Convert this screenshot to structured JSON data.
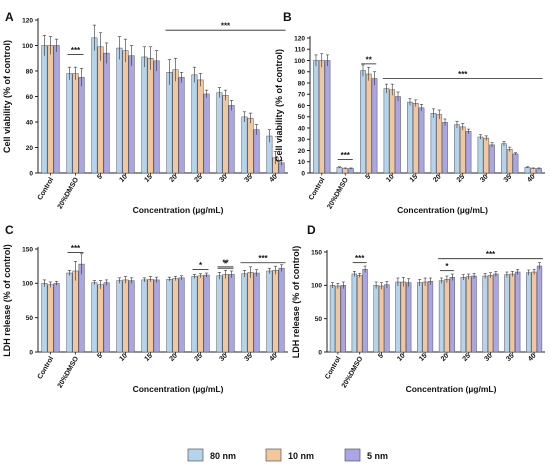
{
  "colors": {
    "80 nm": "#b3d4ea",
    "10 nm": "#f2c79c",
    "5 nm": "#a9a6e3",
    "stroke": "#555566"
  },
  "legend": [
    {
      "label": "80 nm",
      "color": "#b3d4ea"
    },
    {
      "label": "10 nm",
      "color": "#f2c79c"
    },
    {
      "label": "5 nm",
      "color": "#a9a6e3"
    }
  ],
  "chart_data": [
    {
      "panel": "A",
      "type": "bar",
      "ylabel": "Cell viability (% of control)",
      "xlabel": "Concentration (µg/mL)",
      "ylim": [
        0,
        120
      ],
      "yticks": [
        0,
        20,
        40,
        60,
        80,
        100,
        120
      ],
      "categories": [
        "Control",
        "20%DMSO",
        "5",
        "10",
        "15",
        "20",
        "25",
        "30",
        "35",
        "40"
      ],
      "series": [
        {
          "name": "80 nm",
          "values": [
            100,
            78,
            106,
            98,
            91,
            79,
            77,
            63,
            44,
            29
          ],
          "errors": [
            8,
            5,
            10,
            9,
            8,
            10,
            6,
            4,
            4,
            5
          ]
        },
        {
          "name": "10 nm",
          "values": [
            100,
            78,
            99,
            96,
            90,
            81,
            73,
            61,
            43,
            12
          ],
          "errors": [
            7,
            5,
            11,
            9,
            9,
            9,
            5,
            4,
            4,
            5
          ]
        },
        {
          "name": "5 nm",
          "values": [
            100,
            75,
            94,
            92,
            88,
            75,
            62,
            53,
            34,
            8
          ],
          "errors": [
            5,
            7,
            8,
            8,
            8,
            4,
            3,
            4,
            4,
            2
          ]
        }
      ],
      "annotations": [
        {
          "text": "***",
          "from": "20%DMSO",
          "to": "20%DMSO",
          "y": 93
        },
        {
          "text": "***",
          "from": "20",
          "to": "40",
          "y": 112
        }
      ]
    },
    {
      "panel": "B",
      "type": "bar",
      "ylabel": "Cell viability (% of control)",
      "xlabel": "Concentration (µg/mL)",
      "ylim": [
        0,
        120
      ],
      "yticks": [
        0,
        10,
        20,
        30,
        40,
        50,
        60,
        70,
        80,
        90,
        100,
        110,
        120
      ],
      "categories": [
        "Control",
        "20%DMSO",
        "5",
        "10",
        "15",
        "20",
        "25",
        "30",
        "35",
        "40"
      ],
      "series": [
        {
          "name": "80 nm",
          "values": [
            100,
            5,
            91,
            75,
            63,
            53,
            43,
            32,
            26,
            5
          ],
          "errors": [
            5,
            0.5,
            5,
            4,
            3,
            4,
            3,
            2,
            2,
            0.5
          ]
        },
        {
          "name": "10 nm",
          "values": [
            100,
            4,
            88,
            74,
            62,
            52,
            41,
            31,
            21,
            4
          ],
          "errors": [
            6,
            0.5,
            6,
            5,
            3,
            4,
            3,
            2,
            2,
            0.5
          ]
        },
        {
          "name": "5 nm",
          "values": [
            100,
            4,
            84,
            68,
            58,
            45,
            37,
            25,
            17,
            4
          ],
          "errors": [
            5,
            0.5,
            6,
            4,
            3,
            3,
            2,
            2,
            1,
            0.5
          ]
        }
      ],
      "annotations": [
        {
          "text": "***",
          "from": "20%DMSO",
          "to": "20%DMSO",
          "y": 12
        },
        {
          "text": "**",
          "from": "5",
          "to": "5",
          "y": 97
        },
        {
          "text": "***",
          "from": "10",
          "to": "40",
          "y": 84
        }
      ]
    },
    {
      "panel": "C",
      "type": "bar",
      "ylabel": "LDH release (% of control)",
      "xlabel": "Concentration (µg/mL)",
      "ylim": [
        0,
        150
      ],
      "yticks": [
        0,
        50,
        100,
        150
      ],
      "categories": [
        "Control",
        "20%DMSO",
        "5",
        "10",
        "15",
        "20",
        "25",
        "30",
        "35",
        "40"
      ],
      "series": [
        {
          "name": "80 nm",
          "values": [
            100,
            115,
            101,
            104,
            105,
            106,
            110,
            111,
            114,
            118
          ],
          "errors": [
            5,
            4,
            3,
            4,
            3,
            3,
            3,
            5,
            5,
            4
          ]
        },
        {
          "name": "10 nm",
          "values": [
            98,
            118,
            98,
            105,
            106,
            107,
            111,
            113,
            116,
            119
          ],
          "errors": [
            4,
            14,
            6,
            5,
            4,
            3,
            3,
            6,
            8,
            6
          ]
        },
        {
          "name": "5 nm",
          "values": [
            100,
            128,
            101,
            104,
            105,
            108,
            112,
            113,
            115,
            122
          ],
          "errors": [
            3,
            15,
            4,
            4,
            4,
            3,
            3,
            5,
            5,
            5
          ]
        }
      ],
      "annotations": [
        {
          "text": "***",
          "from": "20%DMSO",
          "to": "20%DMSO",
          "y": 145
        },
        {
          "text": "*",
          "from": "25",
          "to": "25",
          "y": 120
        },
        {
          "text": "*",
          "from": "30",
          "to": "30",
          "y": 122
        },
        {
          "text": "**",
          "from": "30",
          "to": "30",
          "y": 124
        },
        {
          "text": "***",
          "from": "35",
          "to": "40",
          "y": 130
        }
      ]
    },
    {
      "panel": "D",
      "type": "bar",
      "ylabel": "LDH release (% of control)",
      "xlabel": "Concentration (µg/mL)",
      "ylim": [
        0,
        150
      ],
      "yticks": [
        0,
        50,
        100,
        150
      ],
      "categories": [
        "Control",
        "20%DMSO",
        "5",
        "10",
        "15",
        "20",
        "25",
        "30",
        "35",
        "40"
      ],
      "series": [
        {
          "name": "80 nm",
          "values": [
            100,
            117,
            100,
            105,
            104,
            107,
            112,
            114,
            116,
            119
          ],
          "errors": [
            4,
            4,
            5,
            6,
            5,
            4,
            4,
            4,
            4,
            4
          ]
        },
        {
          "name": "10 nm",
          "values": [
            99,
            115,
            99,
            105,
            105,
            109,
            113,
            115,
            117,
            120
          ],
          "errors": [
            4,
            3,
            5,
            7,
            6,
            5,
            4,
            4,
            4,
            4
          ]
        },
        {
          "name": "5 nm",
          "values": [
            100,
            124,
            101,
            104,
            106,
            112,
            114,
            117,
            120,
            129
          ],
          "errors": [
            5,
            5,
            5,
            6,
            5,
            5,
            4,
            4,
            4,
            5
          ]
        }
      ],
      "annotations": [
        {
          "text": "***",
          "from": "20%DMSO",
          "to": "20%DMSO",
          "y": 134
        },
        {
          "text": "*",
          "from": "20",
          "to": "20",
          "y": 122
        },
        {
          "text": "***",
          "from": "20",
          "to": "40",
          "y": 140
        }
      ]
    }
  ]
}
